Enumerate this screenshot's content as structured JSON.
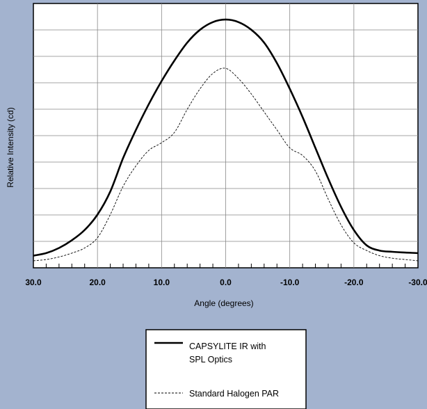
{
  "chart_data": {
    "type": "line",
    "xlabel": "Angle (degrees)",
    "ylabel": "Relative Intensity (cd)",
    "xlim": [
      30,
      -30
    ],
    "ylim": [
      0,
      1
    ],
    "x_ticks": [
      "30.0",
      "20.0",
      "10.0",
      "0.0",
      "-10.0",
      "-20.0",
      "-30.0"
    ],
    "grid": true,
    "legend_position": "bottom-center",
    "series": [
      {
        "name": "CAPSYLITE IR with SPL Optics",
        "style": "solid",
        "color": "#000000",
        "x": [
          30,
          28,
          26,
          24,
          22,
          20,
          18,
          16,
          14,
          12,
          10,
          8,
          6,
          4,
          2,
          0,
          -2,
          -4,
          -6,
          -8,
          -10,
          -12,
          -14,
          -16,
          -18,
          -20,
          -22,
          -24,
          -26,
          -28,
          -30
        ],
        "y": [
          0.05,
          0.06,
          0.08,
          0.11,
          0.15,
          0.21,
          0.3,
          0.43,
          0.54,
          0.64,
          0.73,
          0.81,
          0.88,
          0.93,
          0.96,
          0.97,
          0.96,
          0.93,
          0.88,
          0.8,
          0.7,
          0.59,
          0.47,
          0.35,
          0.24,
          0.15,
          0.09,
          0.07,
          0.065,
          0.062,
          0.06
        ]
      },
      {
        "name": "Standard Halogen PAR",
        "style": "dashed",
        "color": "#000000",
        "x": [
          30,
          28,
          26,
          24,
          22,
          20,
          18,
          16,
          14,
          12,
          10,
          8,
          6,
          4,
          2,
          0,
          -2,
          -4,
          -6,
          -8,
          -10,
          -12,
          -14,
          -16,
          -18,
          -20,
          -22,
          -24,
          -26,
          -28,
          -30
        ],
        "y": [
          0.03,
          0.035,
          0.045,
          0.06,
          0.08,
          0.12,
          0.21,
          0.32,
          0.4,
          0.46,
          0.49,
          0.53,
          0.62,
          0.7,
          0.76,
          0.78,
          0.74,
          0.68,
          0.61,
          0.54,
          0.47,
          0.44,
          0.38,
          0.27,
          0.17,
          0.1,
          0.07,
          0.05,
          0.04,
          0.035,
          0.03
        ]
      }
    ]
  }
}
